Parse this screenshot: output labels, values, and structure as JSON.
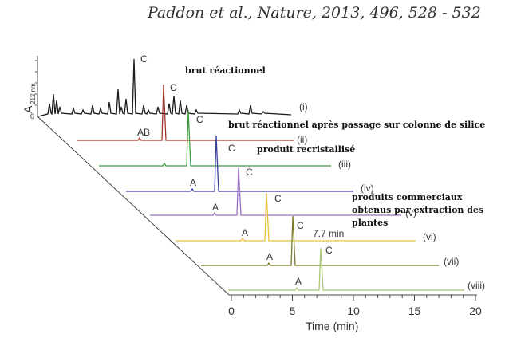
{
  "citation": "Paddon et al., Nature, 2013, 496, 528 - 532",
  "chart_data": {
    "type": "line",
    "title": "",
    "xlabel": "Time (min)",
    "ylabel_main": "A",
    "ylabel_sub": "212 nm",
    "y_origin_label": "0",
    "x_ticks": [
      "0",
      "5",
      "10",
      "15",
      "20"
    ],
    "xlim": [
      0,
      20
    ],
    "colors": {
      "i": "#1a1a1a",
      "ii": "#a0372a",
      "iii": "#3f9b3f",
      "iv": "#3b3fa0",
      "v": "#9b6fc2",
      "vi": "#e8c23a",
      "vii": "#7a7a28",
      "viii": "#a8c878",
      "axis": "#444444"
    },
    "series": [
      {
        "name": "(i)",
        "peak_label": "C",
        "minor_labels": []
      },
      {
        "name": "(ii)",
        "peak_label": "C",
        "minor_labels": [
          "AB"
        ]
      },
      {
        "name": "(iii)",
        "peak_label": "C",
        "minor_labels": []
      },
      {
        "name": "(iv)",
        "peak_label": "C",
        "minor_labels": [
          "A"
        ]
      },
      {
        "name": "(v)",
        "peak_label": "C",
        "minor_labels": [
          "A"
        ]
      },
      {
        "name": "(vi)",
        "peak_label": "C",
        "minor_labels": [
          "A"
        ]
      },
      {
        "name": "(vii)",
        "peak_label": "C",
        "minor_labels": [
          "A"
        ]
      },
      {
        "name": "(viii)",
        "peak_label": "C",
        "minor_labels": [
          "A"
        ]
      }
    ],
    "peak_time_label": "7.7 min",
    "annotations": {
      "crude": "brut réactionnel",
      "crude_silica": "brut réactionnel après passage sur colonne de silice",
      "recrystallized": "produit recristallisé",
      "commercial_1": "produits commerciaux",
      "commercial_2": "obtenus par extraction des",
      "commercial_3": "plantes"
    }
  }
}
